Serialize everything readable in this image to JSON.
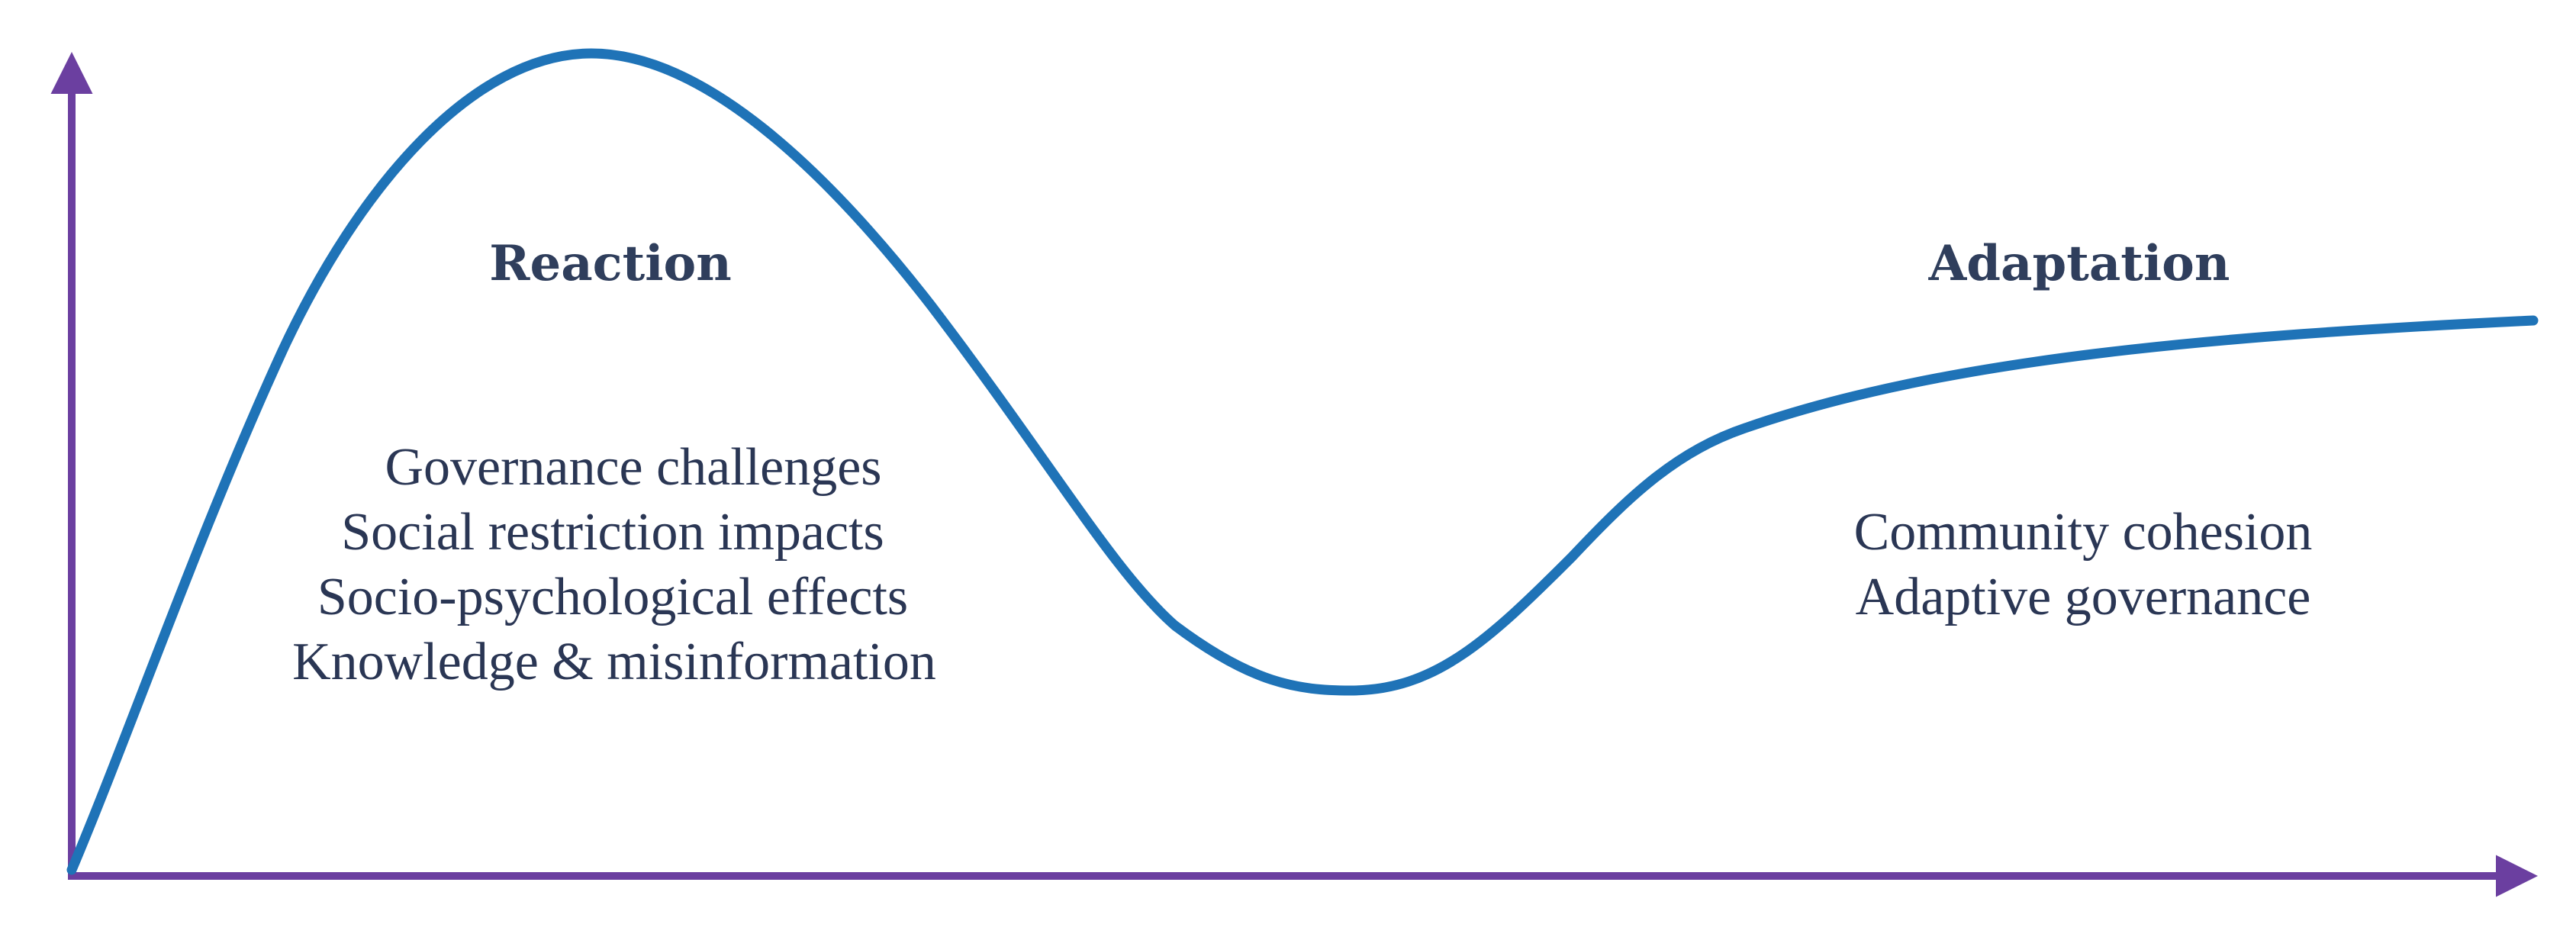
{
  "phases": {
    "reaction": {
      "title": "Reaction",
      "items": [
        "Governance challenges",
        "Social restriction impacts",
        "Socio-psychological effects",
        "Knowledge & misinformation"
      ]
    },
    "adaptation": {
      "title": "Adaptation",
      "items": [
        "Community cohesion",
        "Adaptive governance"
      ]
    }
  },
  "colors": {
    "axis": "#6b3fa0",
    "curve": "#1f73b7",
    "text": "#2a3654"
  }
}
